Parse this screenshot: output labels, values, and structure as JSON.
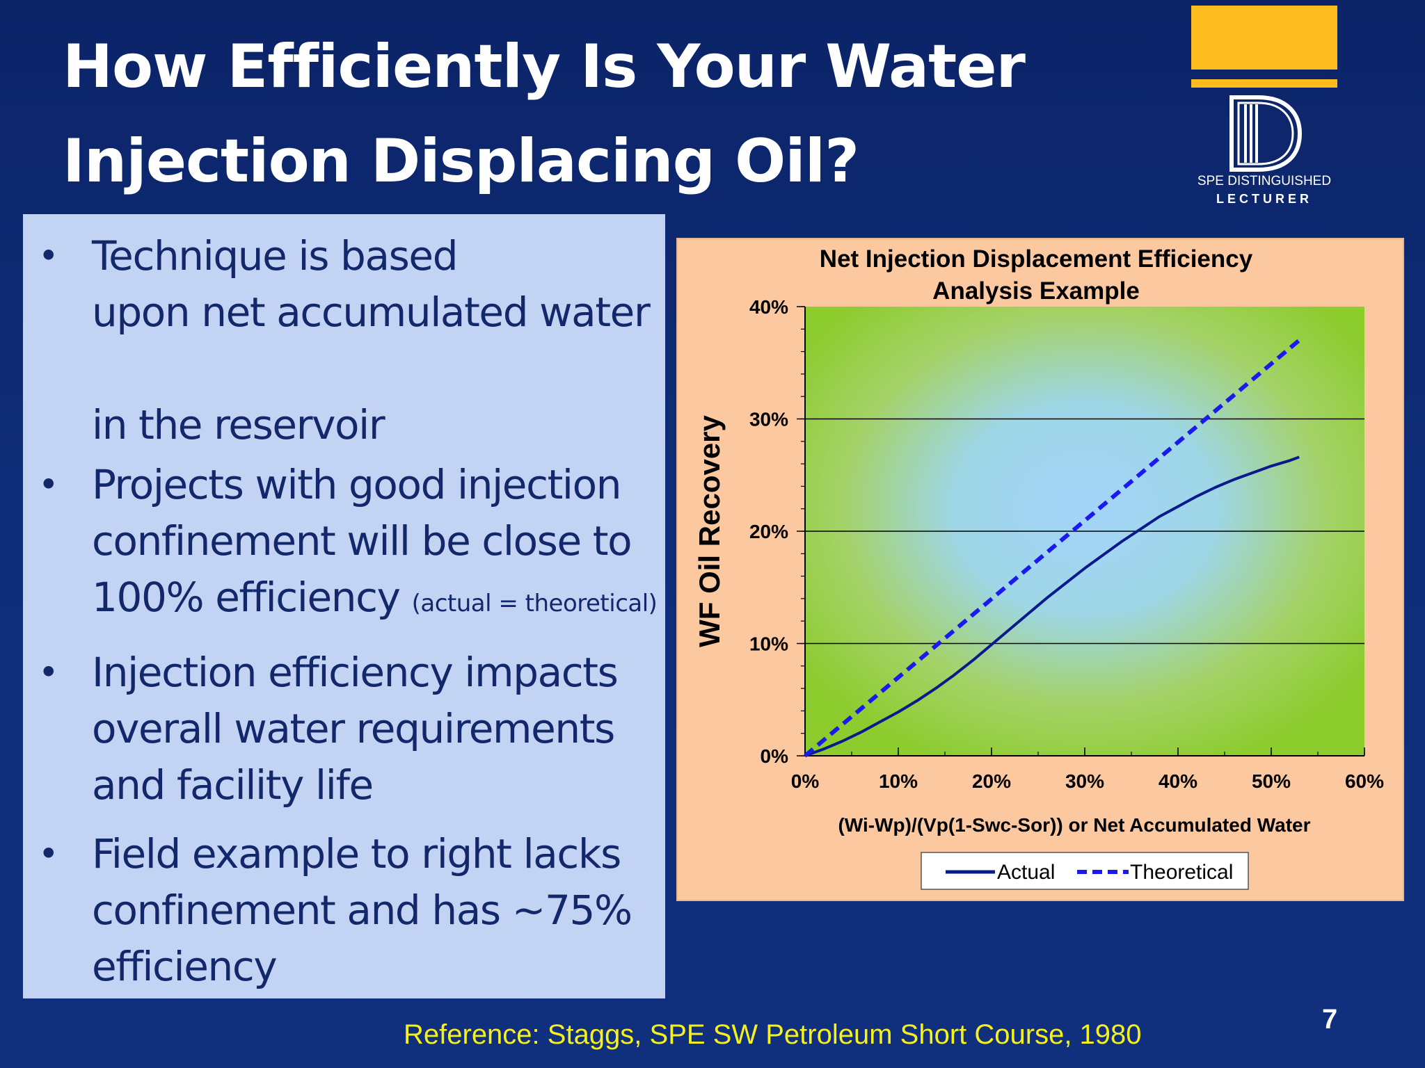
{
  "slide": {
    "title_line1": "How Efficiently Is Your Water",
    "title_line2": "Injection Displacing Oil?",
    "page_number": "7",
    "reference": "Reference:  Staggs, SPE SW Petroleum Short Course, 1980",
    "background_color": "#0f2c78",
    "accent_color": "#fcbc1e"
  },
  "logo": {
    "line1": "SPE DISTINGUISHED",
    "line2": "LECTURER",
    "icon": "spe-d-icon"
  },
  "bullets": [
    {
      "lines": [
        "Technique is based",
        "upon net accumulated water",
        "",
        "in the reservoir"
      ]
    },
    {
      "lines": [
        "Projects with good injection",
        "confinement will be close to",
        "100% efficiency"
      ],
      "note": "(actual = theoretical)"
    },
    {
      "lines": [
        "Injection efficiency impacts",
        "overall water requirements",
        "and facility life"
      ]
    },
    {
      "lines": [
        "Field example to right lacks",
        "confinement and has ~75%",
        "efficiency"
      ]
    }
  ],
  "chart_data": {
    "type": "line",
    "title": "Net Injection Displacement Efficiency",
    "subtitle": "Analysis Example",
    "xlabel": "(Wi-Wp)/(Vp(1-Swc-Sor)) or Net Accumulated Water",
    "ylabel": "WF Oil Recovery",
    "xlim": [
      0,
      60
    ],
    "ylim": [
      0,
      40
    ],
    "x_ticks": [
      "0%",
      "10%",
      "20%",
      "30%",
      "40%",
      "50%",
      "60%"
    ],
    "y_ticks": [
      "0%",
      "10%",
      "20%",
      "30%",
      "40%"
    ],
    "grid": "horizontal",
    "legend_position": "bottom",
    "series": [
      {
        "name": "Actual",
        "style": "solid",
        "color": "#0a1a8c",
        "x": [
          0,
          2,
          4,
          6,
          8,
          10,
          12,
          14,
          16,
          18,
          20,
          22,
          24,
          26,
          28,
          30,
          32,
          34,
          36,
          38,
          40,
          42,
          44,
          46,
          48,
          50,
          52,
          53
        ],
        "y": [
          0,
          0.6,
          1.3,
          2.1,
          3.0,
          3.9,
          4.9,
          6.0,
          7.2,
          8.5,
          9.9,
          11.3,
          12.7,
          14.1,
          15.4,
          16.7,
          17.9,
          19.1,
          20.2,
          21.3,
          22.2,
          23.1,
          23.9,
          24.6,
          25.2,
          25.8,
          26.3,
          26.6
        ]
      },
      {
        "name": "Theoretical",
        "style": "dashed",
        "color": "#1a1aee",
        "x": [
          0,
          53
        ],
        "y": [
          0,
          37
        ]
      }
    ]
  }
}
